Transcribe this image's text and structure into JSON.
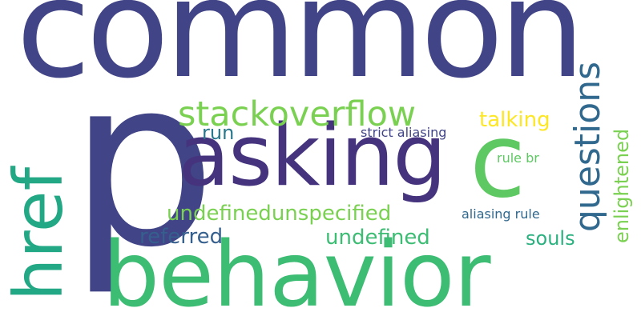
{
  "words": [
    {
      "text": "common",
      "color": "#414487"
    },
    {
      "text": "p",
      "color": "#414487"
    },
    {
      "text": "asking",
      "color": "#46337e"
    },
    {
      "text": "c",
      "color": "#5ec962"
    },
    {
      "text": "href",
      "color": "#22a884"
    },
    {
      "text": "behavior",
      "color": "#3dbc74"
    },
    {
      "text": "stackoverflow",
      "color": "#7ad151"
    },
    {
      "text": "questions",
      "color": "#31688e"
    },
    {
      "text": "talking",
      "color": "#fde725"
    },
    {
      "text": "enlightened",
      "color": "#7ad151"
    },
    {
      "text": "run",
      "color": "#2a788e"
    },
    {
      "text": "strict aliasing",
      "color": "#414487"
    },
    {
      "text": "rule br",
      "color": "#5ec962"
    },
    {
      "text": "undefinedunspecified",
      "color": "#7ad151"
    },
    {
      "text": "aliasing rule",
      "color": "#31688e"
    },
    {
      "text": "referred",
      "color": "#355f8d"
    },
    {
      "text": "undefined",
      "color": "#3dbc74"
    },
    {
      "text": "souls",
      "color": "#2ab07f"
    }
  ]
}
